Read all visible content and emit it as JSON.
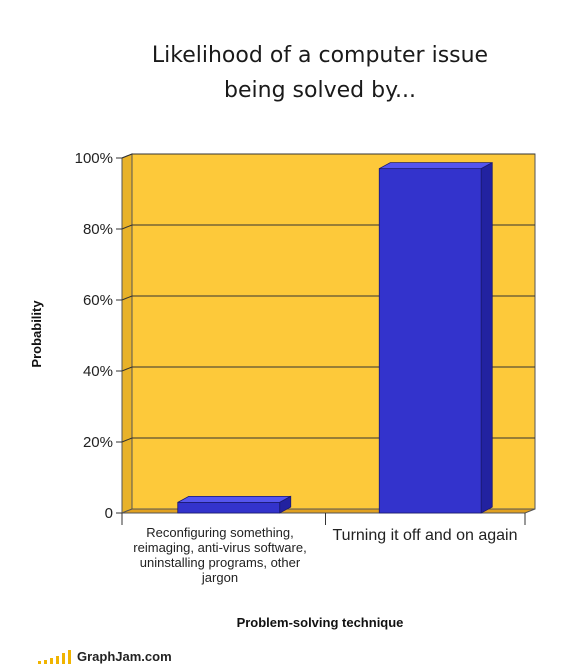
{
  "chart_data": {
    "type": "bar",
    "title_lines": [
      "Likelihood of a computer issue",
      "being solved by..."
    ],
    "categories": [
      "Reconfiguring something, reimaging, anti-virus software, uninstalling programs, other jargon",
      "Turning it off and on again"
    ],
    "values": [
      3,
      97
    ],
    "xlabel": "Problem-solving technique",
    "ylabel": "Probability",
    "ylim": [
      0,
      100
    ],
    "yticks": [
      "0",
      "20%",
      "40%",
      "60%",
      "80%",
      "100%"
    ],
    "ytick_values": [
      0,
      20,
      40,
      60,
      80,
      100
    ],
    "grid": true,
    "colors": {
      "plot_background": "#fdc93a",
      "bar_front": "#3333cc",
      "bar_top": "#5555ee",
      "bar_side": "#2222a0",
      "floor": "#e0a020",
      "gridline": "#333333"
    }
  },
  "footer": {
    "brand": "GraphJam.com"
  }
}
